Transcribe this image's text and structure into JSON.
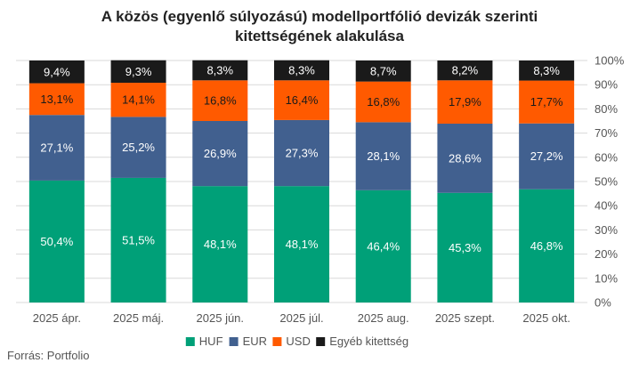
{
  "title_line1": "A közös (egyenlő súlyozású) modellportfólió devizák szerinti",
  "title_line2": "kitettségének alakulása",
  "source": "Forrás: Portfolio",
  "chart_data": {
    "type": "bar",
    "stacked": true,
    "categories": [
      "2025 ápr.",
      "2025 máj.",
      "2025 jún.",
      "2025 júl.",
      "2025 aug.",
      "2025 szept.",
      "2025 okt."
    ],
    "series": [
      {
        "name": "HUF",
        "color": "#00a078",
        "values": [
          50.4,
          51.5,
          48.1,
          48.1,
          46.4,
          45.3,
          46.8
        ],
        "labels": [
          "50,4%",
          "51,5%",
          "48,1%",
          "48,1%",
          "46,4%",
          "45,3%",
          "46,8%"
        ]
      },
      {
        "name": "EUR",
        "color": "#41608f",
        "values": [
          27.1,
          25.2,
          26.9,
          27.3,
          28.1,
          28.6,
          27.2
        ],
        "labels": [
          "27,1%",
          "25,2%",
          "26,9%",
          "27,3%",
          "28,1%",
          "28,6%",
          "27,2%"
        ]
      },
      {
        "name": "USD",
        "color": "#ff5a00",
        "values": [
          13.1,
          14.1,
          16.8,
          16.4,
          16.8,
          17.9,
          17.7
        ],
        "labels": [
          "13,1%",
          "14,1%",
          "16,8%",
          "16,4%",
          "16,8%",
          "17,9%",
          "17,7%"
        ]
      },
      {
        "name": "Egyéb kitettség",
        "color": "#1a1a1a",
        "values": [
          9.4,
          9.3,
          8.3,
          8.3,
          8.7,
          8.2,
          8.3
        ],
        "labels": [
          "9,4%",
          "9,3%",
          "8,3%",
          "8,3%",
          "8,7%",
          "8,2%",
          "8,3%"
        ]
      }
    ],
    "y_ticks": [
      "0%",
      "10%",
      "20%",
      "30%",
      "40%",
      "50%",
      "60%",
      "70%",
      "80%",
      "90%",
      "100%"
    ],
    "ylim": [
      0,
      100
    ],
    "y_axis_side": "right",
    "grid": true,
    "legend_position": "bottom"
  }
}
